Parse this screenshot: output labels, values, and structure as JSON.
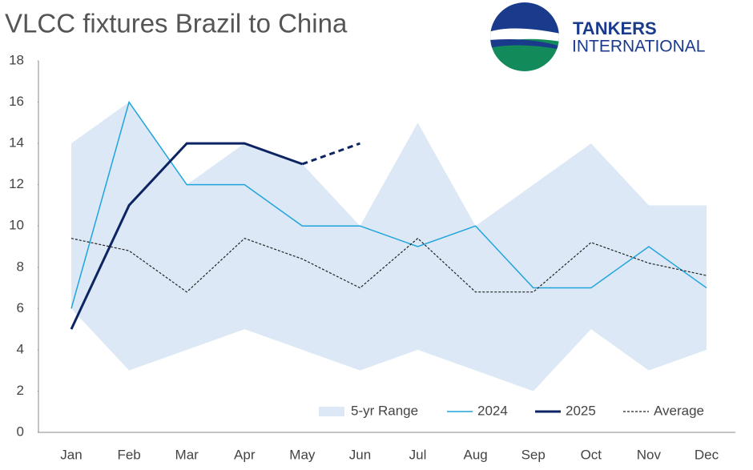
{
  "chart_data": {
    "type": "line",
    "title": "VLCC fixtures Brazil to China",
    "logo": {
      "line1": "TANKERS",
      "line2": "INTERNATIONAL"
    },
    "categories": [
      "Jan",
      "Feb",
      "Mar",
      "Apr",
      "May",
      "Jun",
      "Jul",
      "Aug",
      "Sep",
      "Oct",
      "Nov",
      "Dec"
    ],
    "range": {
      "name": "5-yr Range",
      "color": "#dce8f5",
      "high": [
        14,
        16,
        12,
        14,
        13,
        10,
        15,
        10,
        12,
        14,
        11,
        11
      ],
      "low": [
        6,
        3,
        4,
        5,
        4,
        3,
        4,
        3,
        2,
        5,
        3,
        4
      ]
    },
    "series": [
      {
        "name": "2024",
        "color": "#1fa4dc",
        "width": 1.5,
        "values": [
          6,
          16,
          12,
          12,
          10,
          10,
          9,
          10,
          7,
          7,
          9,
          7
        ]
      },
      {
        "name": "2025",
        "color": "#0c2461",
        "width": 3,
        "dashed_from": 4,
        "values": [
          5,
          11,
          14,
          14,
          13,
          14,
          null,
          null,
          null,
          null,
          null,
          null
        ]
      },
      {
        "name": "Average",
        "color": "#222222",
        "width": 1.2,
        "dashed": true,
        "values": [
          9.4,
          8.8,
          6.8,
          9.4,
          8.4,
          7,
          9.4,
          6.8,
          6.8,
          9.2,
          8.2,
          7.6
        ]
      }
    ],
    "ylim": [
      0,
      18
    ],
    "yticks": [
      0,
      2,
      4,
      6,
      8,
      10,
      12,
      14,
      16,
      18
    ],
    "legend": "bottom-right"
  }
}
